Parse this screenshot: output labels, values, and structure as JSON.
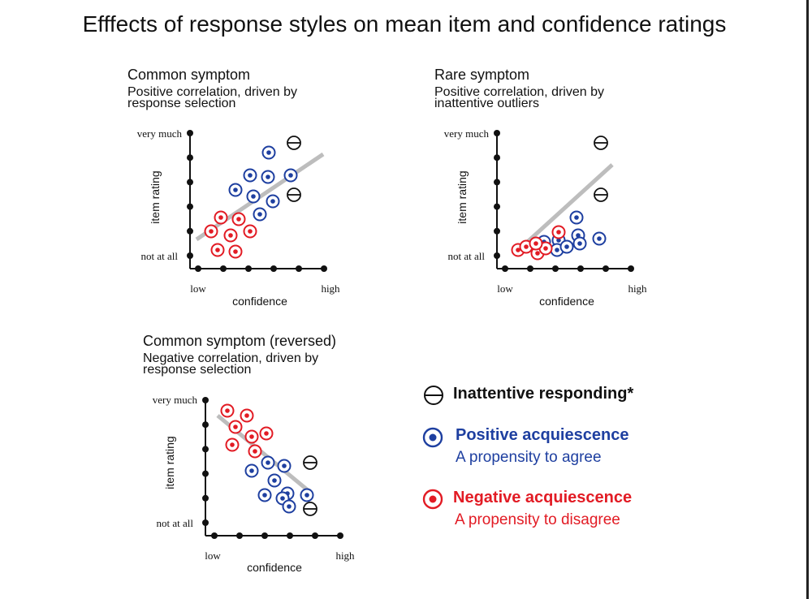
{
  "title": "Efffects of response styles on mean item and confidence ratings",
  "colors": {
    "positive": "#1e3fa0",
    "negative": "#e21b24",
    "inattentive": "#111111",
    "trend": "#bdbdbd",
    "axis": "#111111"
  },
  "panels": [
    {
      "title": "Common symptom",
      "subtitle": "Positive correlation, driven by\nresponse selection",
      "y_top_label": "very much",
      "y_bottom_label": "not at all",
      "y_axis_title": "item rating",
      "x_low_label": "low",
      "x_high_label": "high",
      "x_axis_title": "confidence"
    },
    {
      "title": "Rare symptom",
      "subtitle": "Positive correlation, driven by\ninattentive outliers",
      "y_top_label": "very much",
      "y_bottom_label": "not at all",
      "y_axis_title": "item rating",
      "x_low_label": "low",
      "x_high_label": "high",
      "x_axis_title": "confidence"
    },
    {
      "title": "Common symptom (reversed)",
      "subtitle": "Negative correlation, driven by\nresponse selection",
      "y_top_label": "very much",
      "y_bottom_label": "not at all",
      "y_axis_title": "item rating",
      "x_low_label": "low",
      "x_high_label": "high",
      "x_axis_title": "confidence"
    }
  ],
  "legend": {
    "inattentive": {
      "icon": "minus-circle-icon",
      "label": "Inattentive responding*"
    },
    "positive": {
      "icon": "dot-circle-icon",
      "label": "Positive acquiescence",
      "description": "A propensity to agree"
    },
    "negative": {
      "icon": "dot-circle-icon",
      "label": "Negative acquiescence",
      "description": "A propensity to disagree"
    }
  }
}
